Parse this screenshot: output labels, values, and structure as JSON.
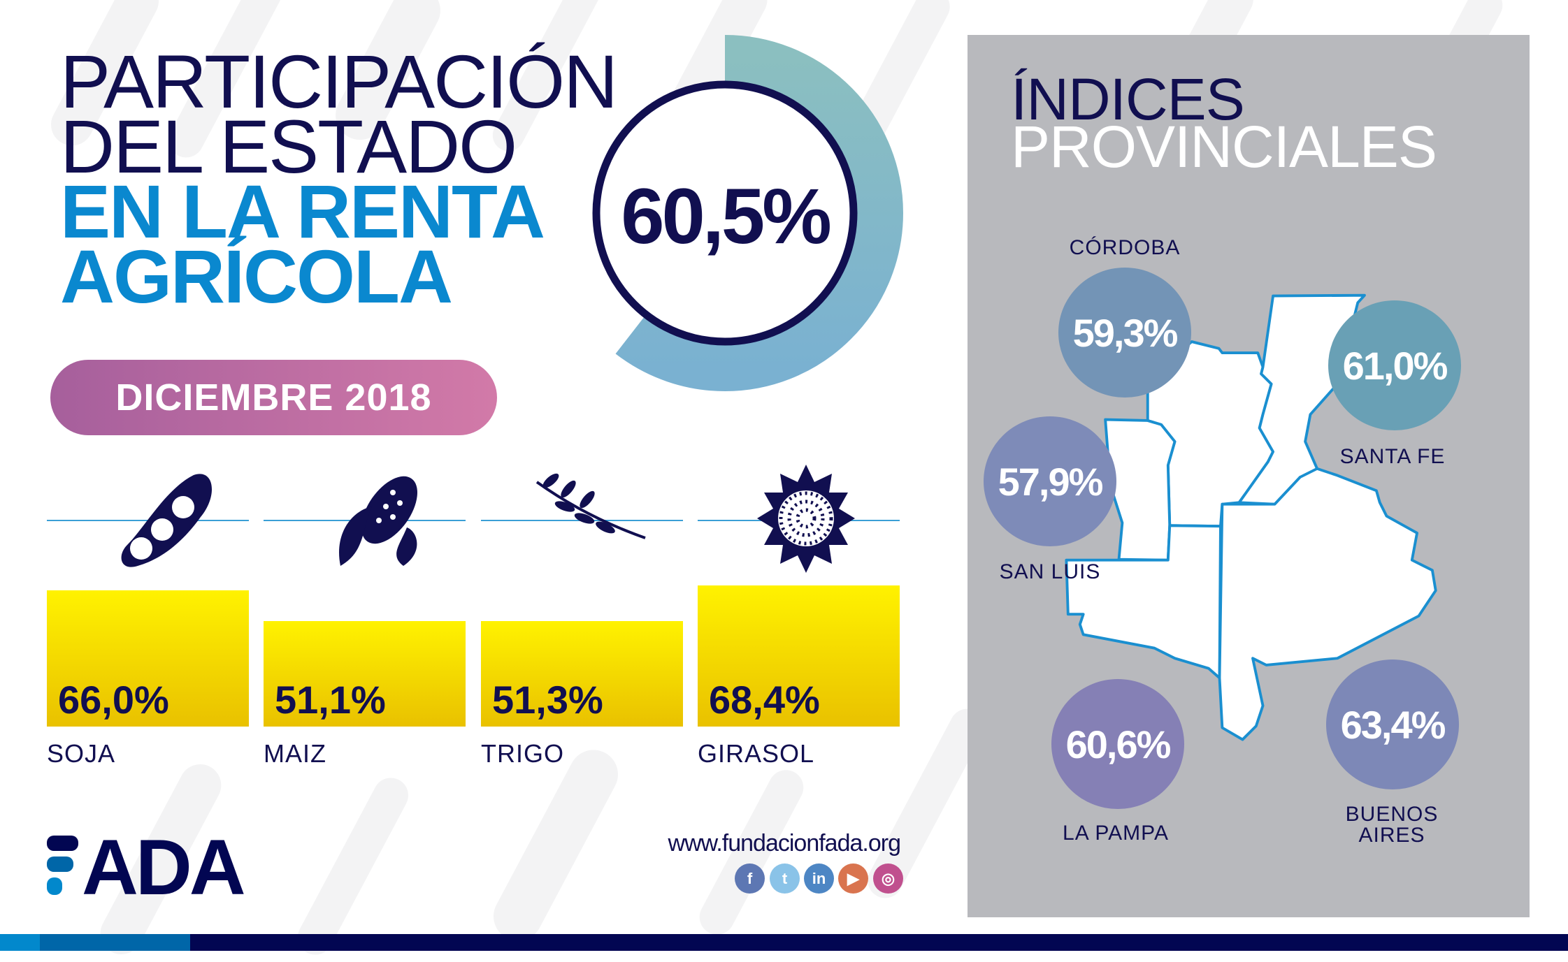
{
  "header": {
    "title_line1": "PARTICIPACIÓN",
    "title_line2": "DEL ESTADO",
    "title_line3": "EN LA RENTA",
    "title_line4": "AGRÍCOLA"
  },
  "headline": {
    "value_label": "60,5%",
    "value": 60.5
  },
  "period": "DICIEMBRE 2018",
  "crops": [
    {
      "name": "SOJA",
      "label": "66,0%",
      "value": 66.0,
      "icon": "soybean-icon"
    },
    {
      "name": "MAIZ",
      "label": "51,1%",
      "value": 51.1,
      "icon": "corn-icon"
    },
    {
      "name": "TRIGO",
      "label": "51,3%",
      "value": 51.3,
      "icon": "wheat-icon"
    },
    {
      "name": "GIRASOL",
      "label": "68,4%",
      "value": 68.4,
      "icon": "sunflower-icon"
    }
  ],
  "panel": {
    "title_line1": "ÍNDICES",
    "title_line2": "PROVINCIALES",
    "provinces": [
      {
        "name": "CÓRDOBA",
        "label": "59,3%",
        "color": "#7394b6"
      },
      {
        "name": "SANTA FE",
        "label": "61,0%",
        "color": "#69a0b5"
      },
      {
        "name": "SAN LUIS",
        "label": "57,9%",
        "color": "#7e8bb8"
      },
      {
        "name": "LA PAMPA",
        "label": "60,6%",
        "color": "#8580b5"
      },
      {
        "name": "BUENOS",
        "name2": "AIRES",
        "label": "63,4%",
        "color": "#7d88b7"
      }
    ]
  },
  "footer": {
    "logo": "FADA",
    "url": "www.fundacionfada.org",
    "social": [
      {
        "icon": "facebook-icon",
        "glyph": "f",
        "color": "#5d77b3"
      },
      {
        "icon": "twitter-icon",
        "glyph": "t",
        "color": "#8ac3e8"
      },
      {
        "icon": "linkedin-icon",
        "glyph": "in",
        "color": "#4d86c4"
      },
      {
        "icon": "youtube-icon",
        "glyph": "▶",
        "color": "#d9744f"
      },
      {
        "icon": "instagram-icon",
        "glyph": "◎",
        "color": "#c0508e"
      }
    ]
  },
  "colors": {
    "navy": "#110f50",
    "blue": "#0a88cf",
    "bar": "#fff200",
    "panel": "#b8b9bd",
    "map_stroke": "#1a8fd0"
  }
}
